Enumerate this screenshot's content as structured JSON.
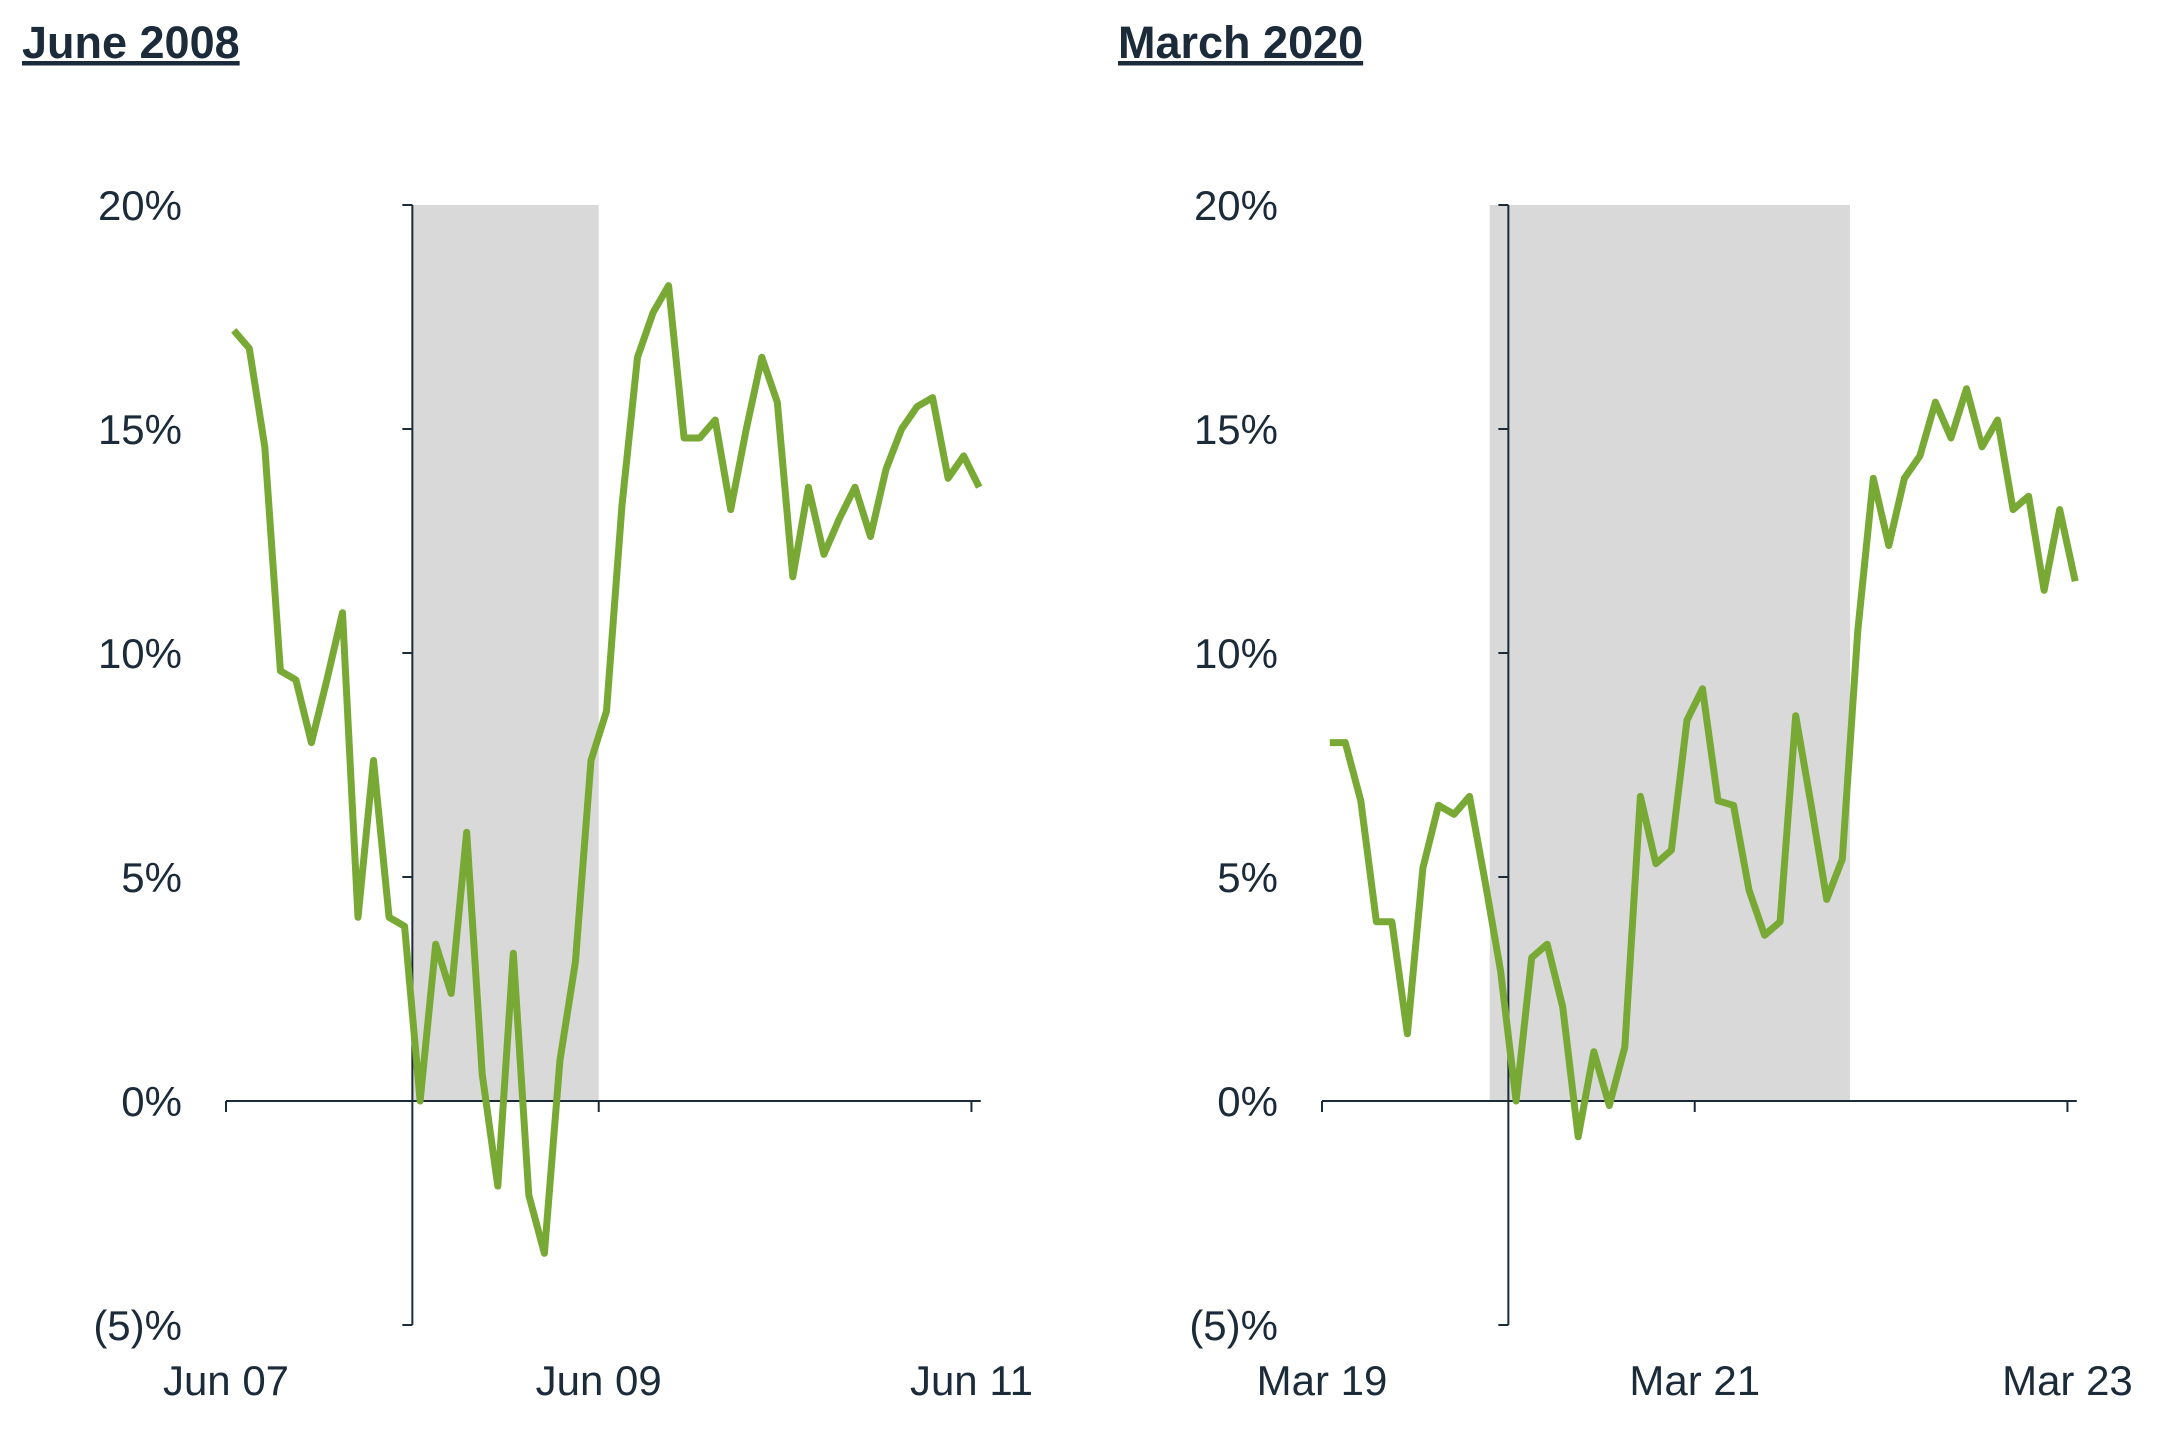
{
  "chart_data": [
    {
      "type": "line",
      "title": "June 2008",
      "color": "#78a935",
      "shade_color": "#d9d9d9",
      "x": [
        0.5,
        1.5,
        2.5,
        3.5,
        4.5,
        5.5,
        6.5,
        7.5,
        8.5,
        9.5,
        10.5,
        11.5,
        12.5,
        13.5,
        14.5,
        15.5,
        16.5,
        17.5,
        18.5,
        19.5,
        20.5,
        21.5,
        22.5,
        23.5,
        24.5,
        25.5,
        26.5,
        27.5,
        28.5,
        29.5,
        30.5,
        31.5,
        32.5,
        33.5,
        34.5,
        35.5,
        36.5,
        37.5,
        38.5,
        39.5,
        40.5,
        41.5,
        42.5,
        43.5,
        44.5,
        45.5,
        46.5,
        47.5,
        48.5
      ],
      "values": [
        17.2,
        16.8,
        14.6,
        9.6,
        9.4,
        8.0,
        9.4,
        10.9,
        4.1,
        7.6,
        4.1,
        3.9,
        0,
        3.5,
        2.4,
        6.0,
        0.6,
        -1.9,
        3.3,
        -2.1,
        -3.4,
        0.9,
        3.1,
        7.6,
        8.7,
        13.3,
        16.6,
        17.6,
        18.2,
        14.8,
        14.8,
        15.2,
        13.2,
        15.0,
        16.6,
        15.6,
        11.7,
        13.7,
        12.2,
        13.0,
        13.7,
        12.6,
        14.1,
        15.0,
        15.5,
        15.7,
        13.9,
        14.4,
        13.7
      ],
      "xlim": [
        0,
        48.6
      ],
      "ylim": [
        -5,
        20
      ],
      "xticks": [
        {
          "value": 0,
          "label": "Jun 07"
        },
        {
          "value": 24,
          "label": "Jun 09"
        },
        {
          "value": 48,
          "label": "Jun 11"
        }
      ],
      "yticks": [
        {
          "value": -5,
          "label": "(5)%"
        },
        {
          "value": 0,
          "label": "0%"
        },
        {
          "value": 5,
          "label": "5%"
        },
        {
          "value": 10,
          "label": "10%"
        },
        {
          "value": 15,
          "label": "15%"
        },
        {
          "value": 20,
          "label": "20%"
        }
      ],
      "shade": [
        12,
        24
      ],
      "y_axis_x": 12
    },
    {
      "type": "line",
      "title": "March 2020",
      "color": "#78a935",
      "shade_color": "#d9d9d9",
      "x": [
        0.5,
        1.5,
        2.5,
        3.5,
        4.5,
        5.5,
        6.5,
        7.5,
        8.5,
        9.5,
        10.5,
        11.5,
        12.5,
        13.5,
        14.5,
        15.5,
        16.5,
        17.5,
        18.5,
        19.5,
        20.5,
        21.5,
        22.5,
        23.5,
        24.5,
        25.5,
        26.5,
        27.5,
        28.5,
        29.5,
        30.5,
        31.5,
        32.5,
        33.5,
        34.5,
        35.5,
        36.5,
        37.5,
        38.5,
        39.5,
        40.5,
        41.5,
        42.5,
        43.5,
        44.5,
        45.5,
        46.5,
        47.5,
        48.5
      ],
      "values": [
        8.0,
        8.0,
        6.7,
        4.0,
        4.0,
        1.5,
        5.2,
        6.6,
        6.4,
        6.8,
        4.9,
        2.9,
        0,
        3.2,
        3.5,
        2.1,
        -0.8,
        1.1,
        -0.1,
        1.2,
        6.8,
        5.3,
        5.6,
        8.5,
        9.2,
        6.7,
        6.6,
        4.7,
        3.7,
        4.0,
        8.6,
        6.6,
        4.5,
        5.4,
        10.5,
        13.9,
        12.4,
        13.9,
        14.4,
        15.6,
        14.8,
        15.9,
        14.6,
        15.2,
        13.2,
        13.5,
        11.4,
        13.2,
        11.6
      ],
      "xlim": [
        0,
        48.6
      ],
      "ylim": [
        -5,
        20
      ],
      "xticks": [
        {
          "value": 0,
          "label": "Mar 19"
        },
        {
          "value": 24,
          "label": "Mar 21"
        },
        {
          "value": 48,
          "label": "Mar 23"
        }
      ],
      "yticks": [
        {
          "value": -5,
          "label": "(5)%"
        },
        {
          "value": 0,
          "label": "0%"
        },
        {
          "value": 5,
          "label": "5%"
        },
        {
          "value": 10,
          "label": "10%"
        },
        {
          "value": 15,
          "label": "15%"
        },
        {
          "value": 20,
          "label": "20%"
        }
      ],
      "shade": [
        10.8,
        34
      ],
      "y_axis_x": 12
    }
  ]
}
